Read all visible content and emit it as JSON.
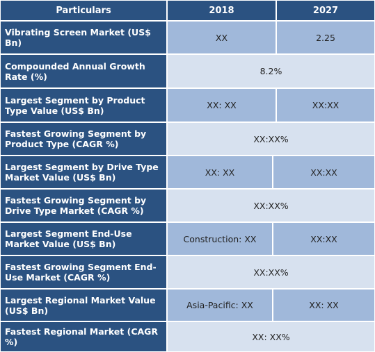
{
  "header": {
    "col1": "Particulars",
    "col2": "2018",
    "col3": "2027"
  },
  "rows": [
    {
      "label": "Vibrating Screen  Market (US$ Bn)",
      "v2018": "XX",
      "v2027": "2.25"
    },
    {
      "label": "Compounded Annual Growth Rate (%)",
      "merged": "8.2%"
    },
    {
      "label": "Largest Segment by Product Type Value (US$ Bn)",
      "v2018": "XX: XX",
      "v2027": "XX:XX"
    },
    {
      "label": "Fastest Growing Segment by Product Type (CAGR %)",
      "merged": "XX:XX%"
    },
    {
      "label": "Largest Segment by Drive Type Market Value (US$ Bn)",
      "v2018": "XX: XX",
      "v2027": "XX:XX"
    },
    {
      "label": "Fastest Growing Segment by Drive Type Market (CAGR %)",
      "merged": "XX:XX%"
    },
    {
      "label": "Largest Segment End-Use Market Value (US$ Bn)",
      "v2018": "Construction: XX",
      "v2027": "XX:XX"
    },
    {
      "label": "Fastest Growing Segment End-Use Market (CAGR %)",
      "merged": "XX:XX%"
    },
    {
      "label": "Largest Regional Market Value (US$ Bn)",
      "v2018": "Asia-Pacific: XX",
      "v2027": "XX: XX"
    },
    {
      "label": "Fastest Regional Market (CAGR %)",
      "merged": "XX: XX%"
    }
  ],
  "colors": {
    "header_bg": "#2b5281",
    "value_dark": "#a0b8da",
    "value_light": "#d7e1ef"
  }
}
